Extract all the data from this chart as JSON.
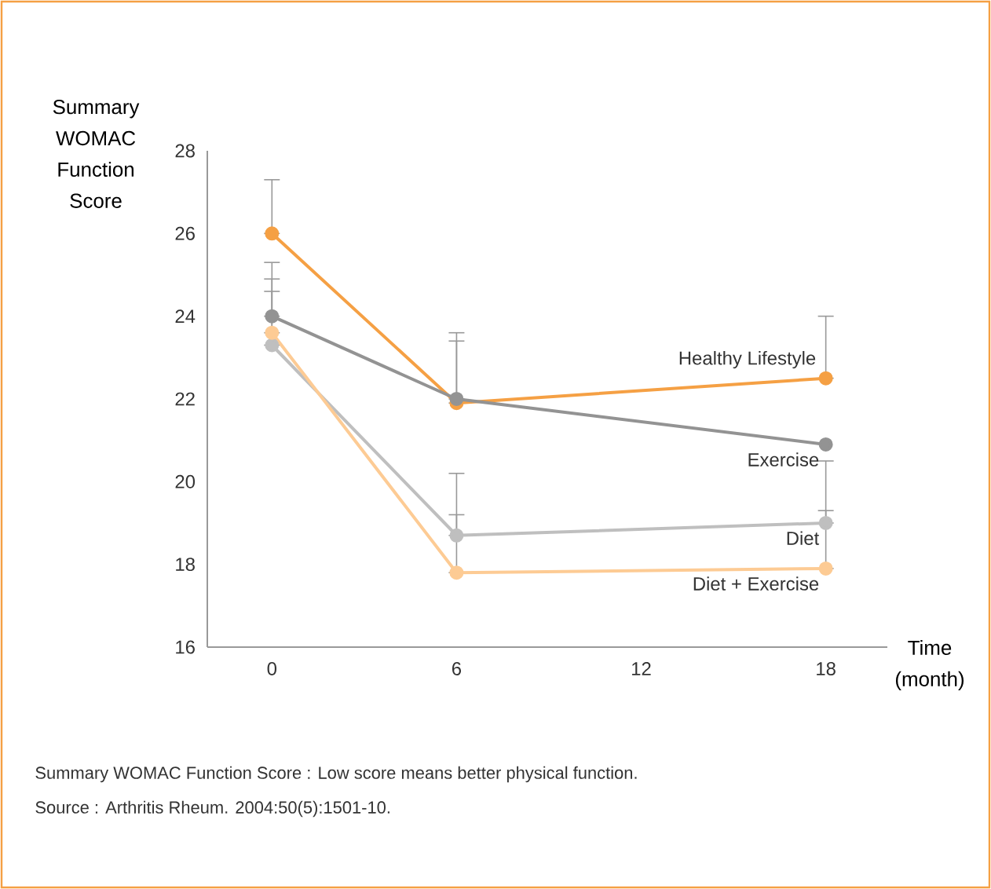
{
  "chart_data": {
    "type": "line",
    "ylabel": "Summary WOMAC Function Score",
    "xlabel": "Time (month)",
    "x": [
      0,
      6,
      18
    ],
    "series": [
      {
        "name": "Healthy Lifestyle",
        "color": "#f5a044",
        "values": [
          26.0,
          21.9,
          22.5
        ],
        "errors": [
          [
            26.0,
            27.3
          ],
          [
            21.9,
            23.6
          ],
          [
            22.5,
            24.0
          ]
        ]
      },
      {
        "name": "Exercise",
        "color": "#939393",
        "values": [
          24.0,
          22.0,
          20.9
        ],
        "errors": [
          [
            24.0,
            25.3
          ],
          [
            22.0,
            23.4
          ],
          null
        ]
      },
      {
        "name": "Diet",
        "color": "#bfbfbf",
        "values": [
          23.3,
          18.7,
          19.0
        ],
        "errors": [
          [
            23.3,
            24.6
          ],
          [
            18.7,
            20.2
          ],
          [
            19.0,
            20.5
          ]
        ]
      },
      {
        "name": "Diet + Exercise",
        "color": "#fdcb94",
        "values": [
          23.6,
          17.8,
          17.9
        ],
        "errors": [
          [
            23.6,
            24.9
          ],
          [
            17.8,
            19.2
          ],
          [
            17.9,
            19.3
          ]
        ]
      }
    ],
    "xlim": [
      -2.1,
      20
    ],
    "ylim": [
      16,
      28
    ],
    "xticks": [
      0,
      6,
      12,
      18
    ],
    "yticks": [
      16,
      18,
      20,
      22,
      24,
      26,
      28
    ],
    "grid": false,
    "marker": "circle",
    "line_style": "solid",
    "annotations": [
      "Summary WOMAC Function Score : Low score means better physical function.",
      "Source : Arthritis Rheum. 2004:50(5):1501-10."
    ]
  }
}
